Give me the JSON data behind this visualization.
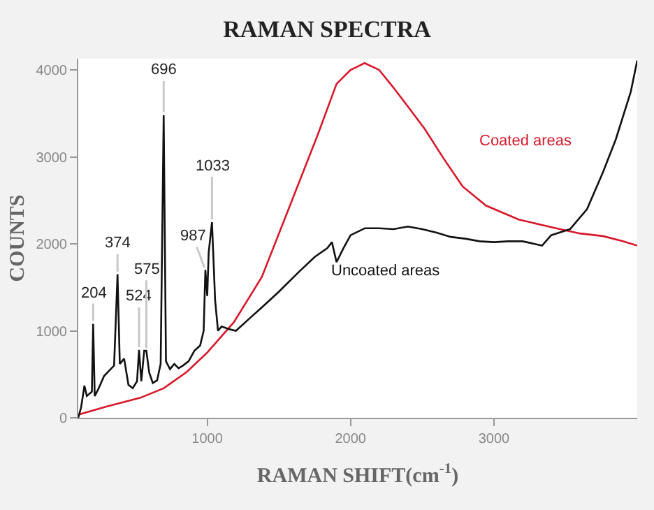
{
  "chart_data": {
    "type": "line",
    "title": "RAMAN SPECTRA",
    "xlabel": "RAMAN SHIFT(cm$^{-1}$)",
    "ylabel": "COUNTS",
    "xlim": [
      100,
      4000
    ],
    "ylim": [
      0,
      4130
    ],
    "xticks": [
      1000,
      2000,
      3000
    ],
    "yticks": [
      0,
      1000,
      2000,
      3000,
      4000
    ],
    "legend": false,
    "marker": "none",
    "line_style": "solid",
    "series": [
      {
        "name": "Coated areas",
        "color": "#d7182a",
        "x": [
          100,
          110,
          300,
          534,
          697,
          859,
          1000,
          1186,
          1381,
          1577,
          1772,
          1902,
          2000,
          2098,
          2200,
          2293,
          2400,
          2518,
          2650,
          2782,
          2945,
          3173,
          3434,
          3600,
          3760,
          3900,
          4000
        ],
        "values": [
          30,
          40,
          130,
          230,
          340,
          530,
          750,
          1100,
          1620,
          2440,
          3260,
          3840,
          4000,
          4080,
          4000,
          3810,
          3580,
          3320,
          2980,
          2660,
          2440,
          2280,
          2180,
          2120,
          2090,
          2030,
          1980
        ]
      },
      {
        "name": "Uncoated areas",
        "color": "#111111",
        "x": [
          100,
          120,
          143,
          160,
          180,
          195,
          204,
          215,
          240,
          280,
          320,
          350,
          374,
          390,
          420,
          450,
          480,
          510,
          524,
          540,
          560,
          575,
          595,
          620,
          650,
          675,
          696,
          712,
          740,
          770,
          800,
          830,
          870,
          910,
          950,
          975,
          987,
          1000,
          1010,
          1033,
          1055,
          1075,
          1100,
          1150,
          1200,
          1300,
          1381,
          1500,
          1641,
          1750,
          1837,
          1870,
          1902,
          1950,
          2000,
          2100,
          2200,
          2300,
          2400,
          2500,
          2600,
          2700,
          2800,
          2900,
          3000,
          3100,
          3200,
          3336,
          3400,
          3532,
          3650,
          3760,
          3850,
          3955,
          4000
        ],
        "values": [
          0,
          120,
          370,
          250,
          280,
          300,
          1080,
          250,
          330,
          480,
          550,
          600,
          1650,
          620,
          680,
          380,
          340,
          420,
          780,
          420,
          770,
          770,
          520,
          400,
          430,
          620,
          3480,
          650,
          560,
          620,
          570,
          600,
          650,
          770,
          830,
          1000,
          1700,
          1400,
          1900,
          2250,
          1350,
          1000,
          1050,
          1020,
          1000,
          1150,
          1270,
          1450,
          1680,
          1850,
          1950,
          2020,
          1790,
          1950,
          2100,
          2180,
          2180,
          2170,
          2200,
          2170,
          2130,
          2080,
          2060,
          2030,
          2020,
          2030,
          2030,
          1980,
          2100,
          2170,
          2400,
          2820,
          3200,
          3750,
          4110
        ]
      }
    ],
    "annotations": [
      {
        "text": "204",
        "x": 204,
        "y": 1080
      },
      {
        "text": "374",
        "x": 374,
        "y": 1650
      },
      {
        "text": "524",
        "x": 524,
        "y": 780
      },
      {
        "text": "575",
        "x": 575,
        "y": 770
      },
      {
        "text": "696",
        "x": 696,
        "y": 3480
      },
      {
        "text": "987",
        "x": 987,
        "y": 1700
      },
      {
        "text": "1033",
        "x": 1033,
        "y": 2250
      }
    ]
  }
}
